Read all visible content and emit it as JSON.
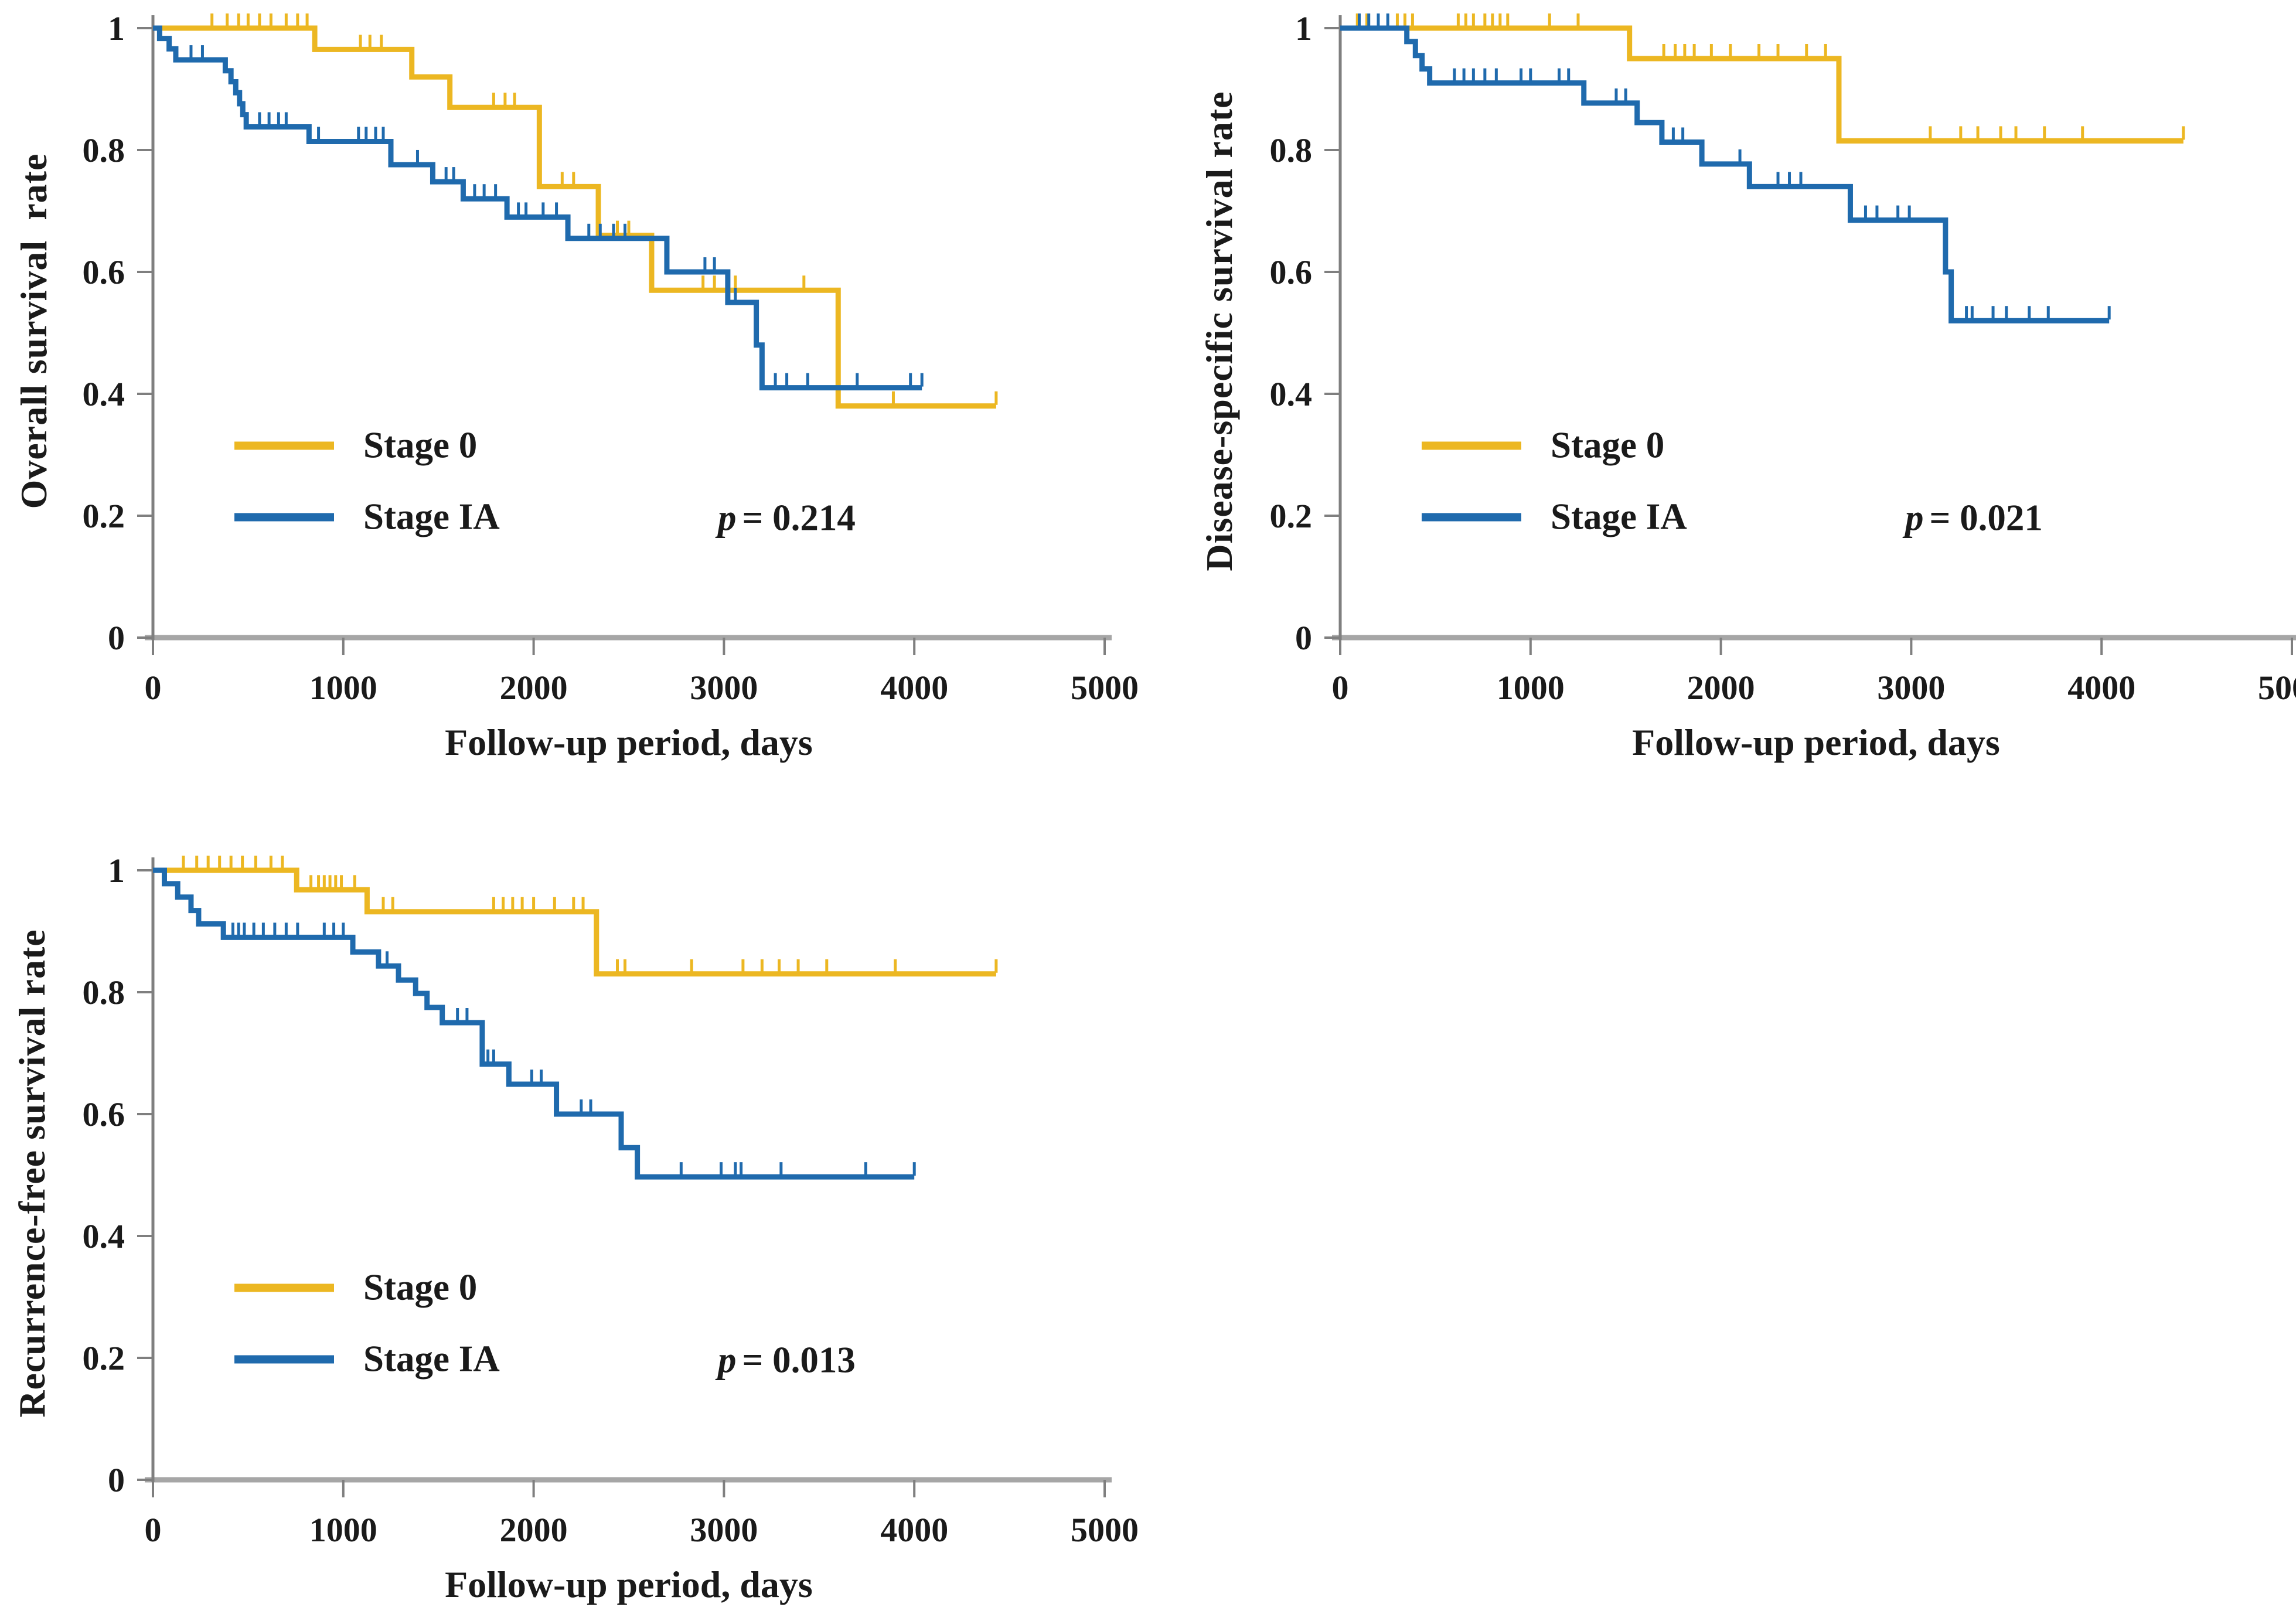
{
  "figure": {
    "background": "#ffffff",
    "p_symbol": "p",
    "legend_labels": [
      "Stage 0",
      "Stage IA"
    ]
  },
  "colors": {
    "stage0": "#ECB722",
    "stageIA": "#1F6AAD",
    "x_axis": "#A6A6A6",
    "y_axis": "#7F7F7F",
    "text": "#1A1A1A"
  },
  "chart_data": [
    {
      "type": "line",
      "subtype": "kaplan-meier-step",
      "title": "",
      "ylabel": "Overall survival  rate",
      "xlabel": "Follow-up period, days",
      "p_symbol": "p",
      "p_eq": "= 0.214",
      "p_value": 0.214,
      "xlim": [
        0,
        5000
      ],
      "ylim": [
        0,
        1
      ],
      "x_ticks": [
        "0",
        "1000",
        "2000",
        "3000",
        "4000",
        "5000"
      ],
      "y_ticks": [
        "1",
        "0.8",
        "0.6",
        "0.4",
        "0.2",
        "0"
      ],
      "grid": false,
      "legend_position": "inside-lower-left",
      "series": [
        {
          "name": "Stage 0",
          "color": "#ECB722",
          "steps": [
            [
              0,
              1
            ],
            [
              850,
              0.965
            ],
            [
              1360,
              0.92
            ],
            [
              1560,
              0.87
            ],
            [
              2030,
              0.74
            ],
            [
              2340,
              0.66
            ],
            [
              2620,
              0.57
            ],
            [
              3600,
              0.38
            ]
          ],
          "end_time": 4430,
          "censors": [
            310,
            390,
            450,
            500,
            560,
            620,
            700,
            760,
            810,
            1090,
            1140,
            1200,
            1790,
            1850,
            1900,
            2150,
            2210,
            2440,
            2500,
            2890,
            2950,
            3060,
            3420,
            3890,
            4430
          ]
        },
        {
          "name": "Stage IA",
          "color": "#1F6AAD",
          "steps": [
            [
              0,
              1
            ],
            [
              35,
              0.983
            ],
            [
              85,
              0.966
            ],
            [
              120,
              0.948
            ],
            [
              380,
              0.93
            ],
            [
              410,
              0.912
            ],
            [
              435,
              0.894
            ],
            [
              455,
              0.876
            ],
            [
              472,
              0.858
            ],
            [
              490,
              0.838
            ],
            [
              820,
              0.814
            ],
            [
              1250,
              0.776
            ],
            [
              1470,
              0.748
            ],
            [
              1630,
              0.72
            ],
            [
              1860,
              0.69
            ],
            [
              2180,
              0.655
            ],
            [
              2700,
              0.6
            ],
            [
              3020,
              0.55
            ],
            [
              3170,
              0.48
            ],
            [
              3200,
              0.41
            ]
          ],
          "end_time": 4040,
          "censors": [
            200,
            260,
            560,
            610,
            660,
            700,
            870,
            1080,
            1120,
            1170,
            1210,
            1390,
            1540,
            1580,
            1690,
            1740,
            1800,
            1920,
            1960,
            2050,
            2120,
            2290,
            2350,
            2420,
            2480,
            2900,
            2950,
            3060,
            3270,
            3330,
            3440,
            3700,
            3980,
            4040
          ]
        }
      ]
    },
    {
      "type": "line",
      "subtype": "kaplan-meier-step",
      "title": "",
      "ylabel": "Disease-specific survival rate",
      "xlabel": "Follow-up period, days",
      "p_symbol": "p",
      "p_eq": "= 0.021",
      "p_value": 0.021,
      "xlim": [
        0,
        5000
      ],
      "ylim": [
        0,
        1
      ],
      "x_ticks": [
        "0",
        "1000",
        "2000",
        "3000",
        "4000",
        "5000"
      ],
      "y_ticks": [
        "1",
        "0.8",
        "0.6",
        "0.4",
        "0.2",
        "0"
      ],
      "grid": false,
      "legend_position": "inside-lower-left",
      "series": [
        {
          "name": "Stage 0",
          "color": "#ECB722",
          "steps": [
            [
              0,
              1
            ],
            [
              1520,
              0.95
            ],
            [
              2620,
              0.815
            ]
          ],
          "end_time": 4430,
          "censors": [
            90,
            140,
            300,
            340,
            380,
            620,
            660,
            700,
            760,
            800,
            840,
            880,
            1100,
            1250,
            1700,
            1760,
            1810,
            1860,
            1950,
            2050,
            2200,
            2300,
            2450,
            2550,
            3100,
            3260,
            3350,
            3470,
            3550,
            3700,
            3900,
            4430
          ]
        },
        {
          "name": "Stage IA",
          "color": "#1F6AAD",
          "steps": [
            [
              0,
              1
            ],
            [
              350,
              0.978
            ],
            [
              395,
              0.955
            ],
            [
              430,
              0.933
            ],
            [
              470,
              0.91
            ],
            [
              1280,
              0.877
            ],
            [
              1560,
              0.845
            ],
            [
              1690,
              0.813
            ],
            [
              1900,
              0.777
            ],
            [
              2150,
              0.74
            ],
            [
              2680,
              0.685
            ],
            [
              3180,
              0.6
            ],
            [
              3210,
              0.52
            ]
          ],
          "end_time": 4040,
          "censors": [
            100,
            150,
            200,
            250,
            600,
            650,
            700,
            760,
            820,
            950,
            1000,
            1150,
            1200,
            1450,
            1500,
            1750,
            1800,
            2100,
            2300,
            2360,
            2420,
            2760,
            2820,
            2930,
            2990,
            3290,
            3320,
            3430,
            3500,
            3620,
            3720,
            4040
          ]
        }
      ]
    },
    {
      "type": "line",
      "subtype": "kaplan-meier-step",
      "title": "",
      "ylabel": "Recurrence-free survival rate",
      "xlabel": "Follow-up period, days",
      "p_symbol": "p",
      "p_eq": "= 0.013",
      "p_value": 0.013,
      "xlim": [
        0,
        5000
      ],
      "ylim": [
        0,
        1
      ],
      "x_ticks": [
        "0",
        "1000",
        "2000",
        "3000",
        "4000",
        "5000"
      ],
      "y_ticks": [
        "1",
        "0.8",
        "0.6",
        "0.4",
        "0.2",
        "0"
      ],
      "grid": false,
      "legend_position": "inside-lower-left",
      "series": [
        {
          "name": "Stage 0",
          "color": "#ECB722",
          "steps": [
            [
              0,
              1
            ],
            [
              755,
              0.968
            ],
            [
              1125,
              0.932
            ],
            [
              2330,
              0.83
            ]
          ],
          "end_time": 4430,
          "censors": [
            160,
            230,
            290,
            350,
            410,
            470,
            540,
            620,
            680,
            830,
            870,
            900,
            930,
            960,
            990,
            1060,
            1210,
            1260,
            1790,
            1840,
            1890,
            1940,
            2000,
            2110,
            2210,
            2260,
            2440,
            2480,
            2830,
            3100,
            3200,
            3290,
            3390,
            3540,
            3900,
            4430
          ]
        },
        {
          "name": "Stage IA",
          "color": "#1F6AAD",
          "steps": [
            [
              0,
              1
            ],
            [
              60,
              0.978
            ],
            [
              130,
              0.956
            ],
            [
              200,
              0.934
            ],
            [
              240,
              0.912
            ],
            [
              370,
              0.89
            ],
            [
              1050,
              0.866
            ],
            [
              1185,
              0.843
            ],
            [
              1290,
              0.82
            ],
            [
              1380,
              0.798
            ],
            [
              1440,
              0.775
            ],
            [
              1520,
              0.75
            ],
            [
              1730,
              0.682
            ],
            [
              1870,
              0.649
            ],
            [
              2120,
              0.6
            ],
            [
              2460,
              0.545
            ],
            [
              2545,
              0.497
            ]
          ],
          "end_time": 4000,
          "censors": [
            420,
            450,
            480,
            530,
            580,
            640,
            700,
            760,
            900,
            950,
            1000,
            1230,
            1600,
            1650,
            1760,
            1790,
            1990,
            2040,
            2250,
            2300,
            2775,
            2985,
            3060,
            3090,
            3300,
            3745,
            4000
          ]
        }
      ]
    }
  ]
}
